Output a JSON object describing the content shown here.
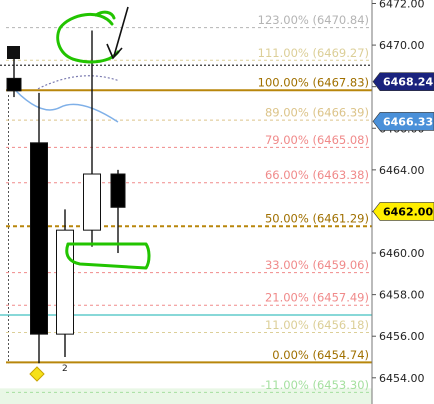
{
  "chart_data": {
    "type": "candlestick",
    "y_axis": {
      "position": "right",
      "ticks": [
        6472.0,
        6470.0,
        6468.0,
        6466.0,
        6464.0,
        6462.0,
        6460.0,
        6458.0,
        6456.0,
        6454.0
      ],
      "tick_labels": [
        "6472.00",
        "6470.00",
        "6468.00",
        "6466.00",
        "6464.00",
        "6462.00",
        "6460.00",
        "6458.00",
        "6456.00",
        "6454.00"
      ],
      "ylim": [
        6452.8,
        6472.4
      ]
    },
    "fib_levels": [
      {
        "label": "123.00% (6470.84)",
        "value": 6470.84,
        "color": "#b4b4b4"
      },
      {
        "label": "111.00% (6469.27)",
        "value": 6469.27,
        "color": "#dccf98"
      },
      {
        "label": "100.00% (6467.83)",
        "value": 6467.83,
        "color": "#b8860b"
      },
      {
        "label": "89.00% (6466.39)",
        "value": 6466.39,
        "color": "#dcc48a"
      },
      {
        "label": "79.00% (6465.08)",
        "value": 6465.08,
        "color": "#f08a8a"
      },
      {
        "label": "66.00% (6463.38)",
        "value": 6463.38,
        "color": "#f08a8a"
      },
      {
        "label": "50.00% (6461.29)",
        "value": 6461.29,
        "color": "#b8860b"
      },
      {
        "label": "33.00% (6459.06)",
        "value": 6459.06,
        "color": "#f08a8a"
      },
      {
        "label": "21.00% (6457.49)",
        "value": 6457.49,
        "color": "#f08a8a"
      },
      {
        "label": "11.00% (6456.18)",
        "value": 6456.18,
        "color": "#dccf98"
      },
      {
        "label": "0.00% (6454.74)",
        "value": 6454.74,
        "color": "#b8860b"
      },
      {
        "label": "-11.00% (6453.30)",
        "value": 6453.3,
        "color": "#a6e0a0"
      }
    ],
    "price_tags": [
      {
        "label": "6468.24",
        "value": 6468.24,
        "bg": "#1a237e",
        "fg": "#ffffff"
      },
      {
        "label": "6466.33",
        "value": 6466.33,
        "bg": "#4a90d9",
        "fg": "#ffffff"
      },
      {
        "label": "6462.00",
        "value": 6462.0,
        "bg": "#ffee00",
        "fg": "#000000"
      }
    ],
    "candles": [
      {
        "open": 6468.4,
        "close": 6467.8,
        "high": 6469.5,
        "low": 6467.5,
        "bullish": false
      },
      {
        "open": 6465.3,
        "close": 6456.1,
        "high": 6467.7,
        "low": 6454.7,
        "bullish": false
      },
      {
        "open": 6456.1,
        "close": 6461.1,
        "high": 6462.1,
        "low": 6455.0,
        "bullish": true
      },
      {
        "open": 6461.1,
        "close": 6463.8,
        "high": 6470.7,
        "low": 6460.3,
        "bullish": true
      },
      {
        "open": 6463.8,
        "close": 6462.2,
        "high": 6464.0,
        "low": 6460.0,
        "bullish": false
      }
    ],
    "bar_label": "2",
    "extra_lines": [
      {
        "value": 6457.02,
        "color": "#40c0c0"
      },
      {
        "value": 6469.03,
        "color": "#333333",
        "dashed": true
      }
    ]
  }
}
